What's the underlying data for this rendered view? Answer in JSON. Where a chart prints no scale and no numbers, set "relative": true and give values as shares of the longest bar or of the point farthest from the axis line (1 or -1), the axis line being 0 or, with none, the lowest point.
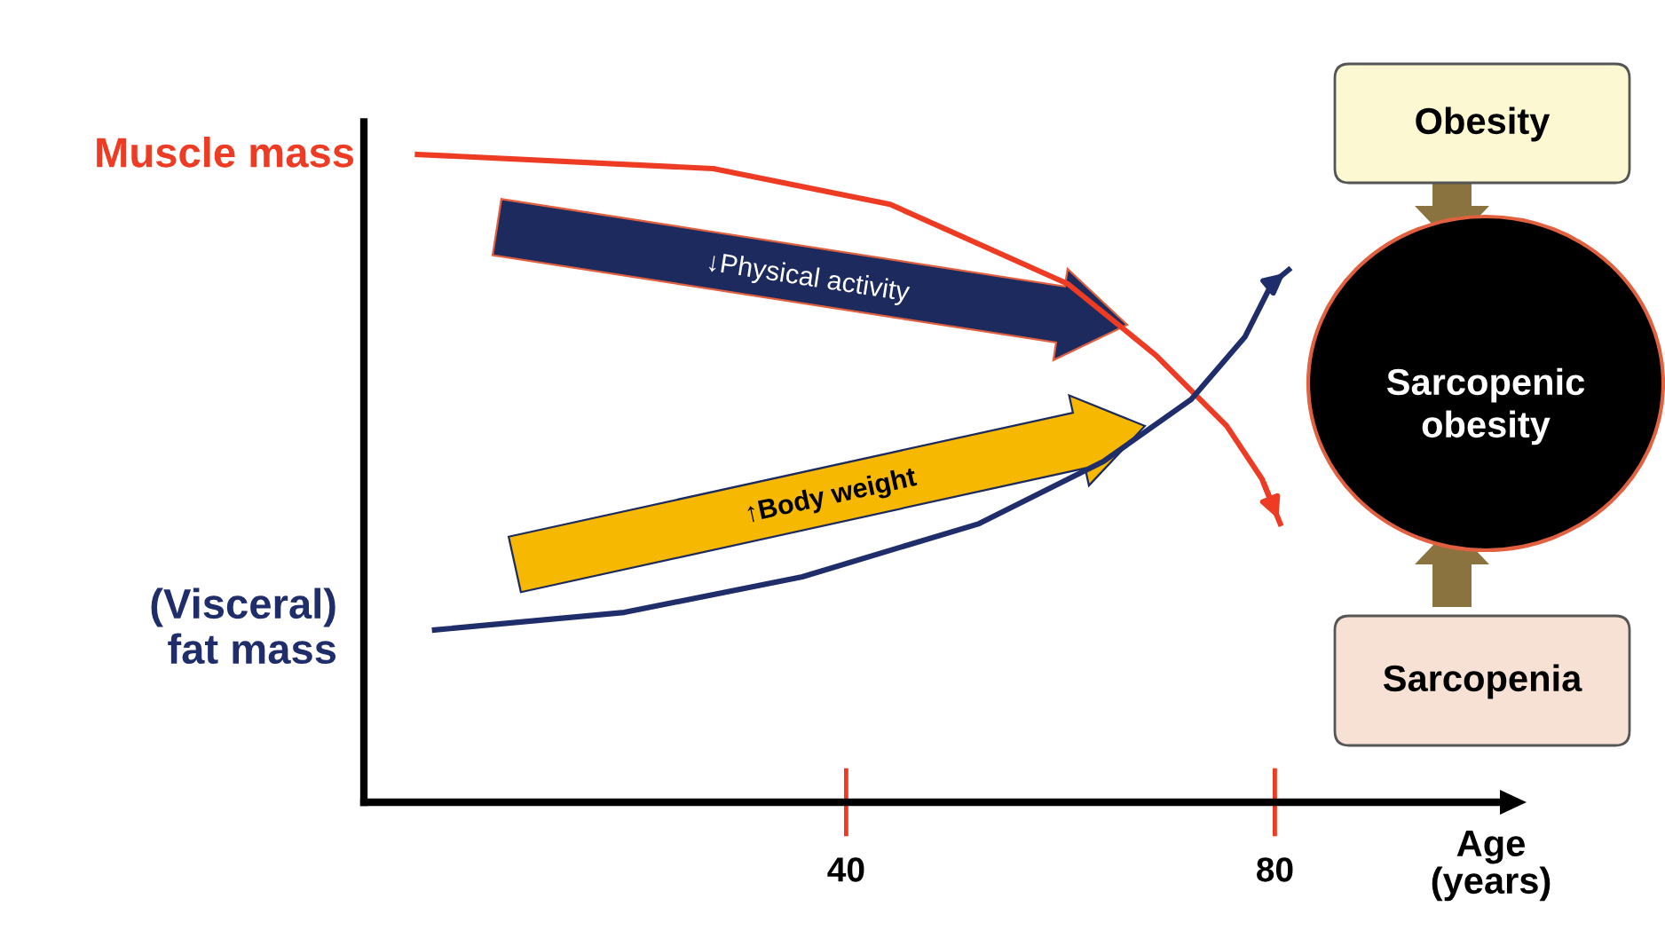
{
  "chart_data": {
    "type": "line",
    "relative": true,
    "xlabel": "Age\n(years)",
    "xlim": [
      -5,
      101
    ],
    "xticks": [
      40,
      80
    ],
    "tick_labels": "x",
    "grid": false,
    "legend": false,
    "marker": "none",
    "line_style": "solid",
    "series": [
      {
        "name": "Muscle mass",
        "color": "#ee3b24",
        "x": [
          0,
          27.6,
          44.1,
          60.7,
          68.9,
          75.5,
          78.8,
          80.5
        ],
        "values": [
          1.0,
          0.978,
          0.923,
          0.8,
          0.69,
          0.581,
          0.499,
          0.43
        ]
      },
      {
        "name": "(Visceral)\nfat mass",
        "color": "#1f2d6b",
        "x": [
          1.6,
          19.3,
          35.9,
          52.4,
          64.0,
          72.2,
          77.2,
          79.7,
          81.3
        ],
        "values": [
          0.266,
          0.293,
          0.348,
          0.43,
          0.526,
          0.622,
          0.718,
          0.8,
          0.822
        ]
      }
    ],
    "annotations": [
      "↓Physical activity",
      "↑Body weight",
      "Obesity",
      "Sarcopenic obesity",
      "Sarcopenia"
    ]
  }
}
